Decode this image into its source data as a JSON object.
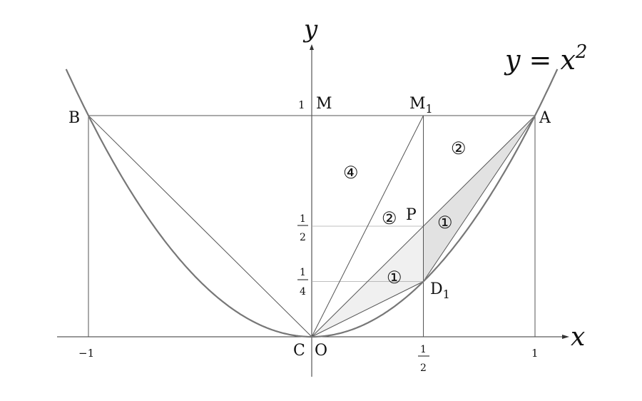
{
  "axes": {
    "x_label": "x",
    "y_label": "y"
  },
  "curve": {
    "label_lhs": "y = x",
    "label_exp": "2",
    "function": "y = x^2"
  },
  "points": {
    "A": {
      "label": "A",
      "x": 1,
      "y": 1
    },
    "B": {
      "label": "B",
      "x": -1,
      "y": 1
    },
    "M": {
      "label": "M",
      "x": 0,
      "y": 1
    },
    "M1": {
      "label": "M",
      "sub": "1",
      "x": 0.5,
      "y": 1
    },
    "P": {
      "label": "P",
      "x": 0.5,
      "y": 0.5
    },
    "D1": {
      "label": "D",
      "sub": "1",
      "x": 0.5,
      "y": 0.25
    },
    "C": {
      "label": "C",
      "x": 0,
      "y": 0
    },
    "O": {
      "label": "O",
      "x": 0,
      "y": 0
    }
  },
  "ticks": {
    "x_neg1": "−1",
    "x_one": "1",
    "x_half_num": "1",
    "x_half_den": "2",
    "y_one": "1",
    "y_half_num": "1",
    "y_half_den": "2",
    "y_quarter_num": "1",
    "y_quarter_den": "4"
  },
  "region_labels": {
    "r4": "④",
    "r2_top": "②",
    "r2_mid": "②",
    "r1_right": "①",
    "r1_left": "①"
  },
  "colors": {
    "curve": "#777777",
    "line": "#555555",
    "shade_light": "#f0f0f0",
    "shade_dark": "#e2e2e2",
    "guide": "#aaaaaa"
  }
}
